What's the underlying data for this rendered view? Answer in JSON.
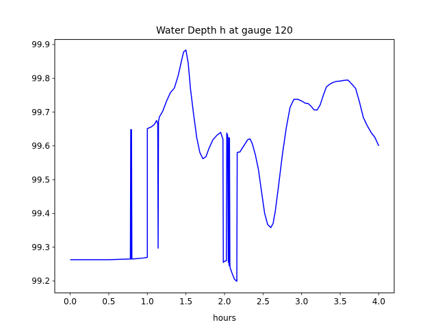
{
  "chart_data": {
    "type": "line",
    "title": "Water Depth h at gauge 120",
    "xlabel": "hours",
    "ylabel": "",
    "xlim": [
      -0.2,
      4.2
    ],
    "ylim": [
      99.165,
      99.915
    ],
    "xticks": [
      {
        "value": 0.0,
        "label": "0.0"
      },
      {
        "value": 0.5,
        "label": "0.5"
      },
      {
        "value": 1.0,
        "label": "1.0"
      },
      {
        "value": 1.5,
        "label": "1.5"
      },
      {
        "value": 2.0,
        "label": "2.0"
      },
      {
        "value": 2.5,
        "label": "2.5"
      },
      {
        "value": 3.0,
        "label": "3.0"
      },
      {
        "value": 3.5,
        "label": "3.5"
      },
      {
        "value": 4.0,
        "label": "4.0"
      }
    ],
    "yticks": [
      {
        "value": 99.2,
        "label": "99.2"
      },
      {
        "value": 99.3,
        "label": "99.3"
      },
      {
        "value": 99.4,
        "label": "99.4"
      },
      {
        "value": 99.5,
        "label": "99.5"
      },
      {
        "value": 99.6,
        "label": "99.6"
      },
      {
        "value": 99.7,
        "label": "99.7"
      },
      {
        "value": 99.8,
        "label": "99.8"
      },
      {
        "value": 99.9,
        "label": "99.9"
      }
    ],
    "grid": false,
    "series": [
      {
        "color": "#0000ff",
        "x": [
          0.0,
          0.5,
          0.78,
          0.785,
          0.79,
          0.795,
          0.8,
          0.805,
          0.95,
          1.0,
          1.0,
          1.05,
          1.09,
          1.12,
          1.135,
          1.14,
          1.145,
          1.15,
          1.155,
          1.2,
          1.25,
          1.3,
          1.35,
          1.4,
          1.44,
          1.47,
          1.5,
          1.53,
          1.56,
          1.6,
          1.64,
          1.68,
          1.72,
          1.76,
          1.8,
          1.85,
          1.9,
          1.95,
          1.98,
          1.985,
          2.0,
          2.02,
          2.025,
          2.03,
          2.035,
          2.04,
          2.05,
          2.055,
          2.06,
          2.065,
          2.07,
          2.075,
          2.08,
          2.1,
          2.13,
          2.16,
          2.165,
          2.17,
          2.2,
          2.25,
          2.3,
          2.33,
          2.36,
          2.4,
          2.44,
          2.48,
          2.52,
          2.56,
          2.6,
          2.63,
          2.66,
          2.7,
          2.75,
          2.8,
          2.85,
          2.9,
          2.95,
          3.0,
          3.05,
          3.08,
          3.12,
          3.16,
          3.2,
          3.24,
          3.28,
          3.32,
          3.36,
          3.4,
          3.45,
          3.5,
          3.55,
          3.6,
          3.65,
          3.7,
          3.75,
          3.8,
          3.85,
          3.9,
          3.95,
          4.0
        ],
        "y": [
          99.263,
          99.263,
          99.265,
          99.648,
          99.265,
          99.648,
          99.265,
          99.265,
          99.268,
          99.27,
          99.651,
          99.656,
          99.663,
          99.675,
          99.665,
          99.297,
          99.675,
          99.677,
          99.685,
          99.703,
          99.733,
          99.758,
          99.771,
          99.808,
          99.849,
          99.878,
          99.884,
          99.845,
          99.768,
          99.693,
          99.625,
          99.581,
          99.562,
          99.568,
          99.593,
          99.618,
          99.631,
          99.64,
          99.62,
          99.255,
          99.258,
          99.26,
          99.26,
          99.638,
          99.634,
          99.633,
          99.255,
          99.625,
          99.245,
          99.623,
          99.25,
          99.238,
          99.235,
          99.222,
          99.205,
          99.199,
          99.58,
          99.581,
          99.582,
          99.6,
          99.618,
          99.621,
          99.607,
          99.574,
          99.53,
          99.465,
          99.401,
          99.367,
          99.358,
          99.37,
          99.409,
          99.48,
          99.573,
          99.652,
          99.714,
          99.738,
          99.738,
          99.733,
          99.726,
          99.726,
          99.718,
          99.707,
          99.706,
          99.721,
          99.749,
          99.774,
          99.782,
          99.787,
          99.791,
          99.792,
          99.794,
          99.795,
          99.783,
          99.77,
          99.73,
          99.684,
          99.66,
          99.64,
          99.625,
          99.6
        ]
      }
    ]
  }
}
